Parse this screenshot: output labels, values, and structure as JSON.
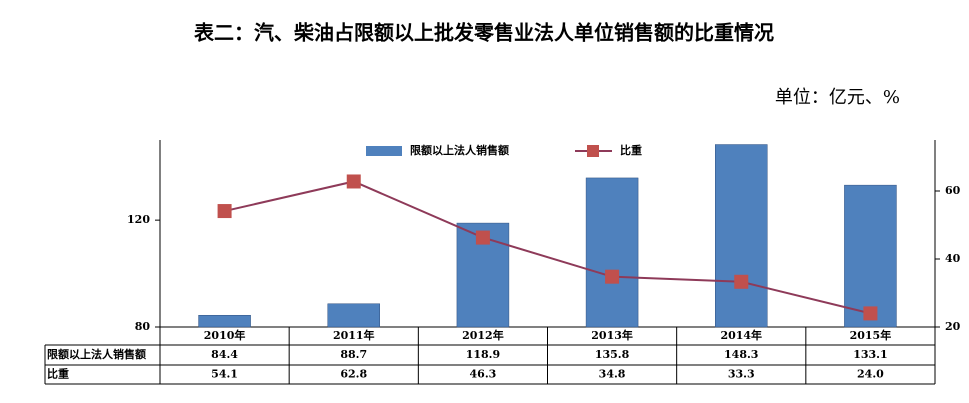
{
  "chart_data": {
    "type": "bar-line",
    "title": "表二：汽、柴油占限额以上批发零售业法人单位销售额的比重情况",
    "unit": "单位：亿元、%",
    "categories": [
      "2010年",
      "2011年",
      "2012年",
      "2013年",
      "2014年",
      "2015年"
    ],
    "series": [
      {
        "name": "限额以上法人销售额",
        "type": "bar",
        "color": "#4f81bd",
        "values": [
          84.4,
          88.7,
          118.9,
          135.8,
          148.3,
          133.1
        ]
      },
      {
        "name": "比重",
        "type": "line",
        "axis": "y2",
        "color": "#8e3a59",
        "marker_color": "#c0504d",
        "values": [
          54.1,
          62.8,
          46.3,
          34.8,
          33.3,
          24.0
        ],
        "value_labels": [
          "54.1",
          "62.8",
          "46.3",
          "34.8",
          "33.3",
          "24.0"
        ]
      }
    ],
    "ylim": [
      80,
      150
    ],
    "yticks": [
      80,
      120
    ],
    "y2lim": [
      20,
      75
    ],
    "y2ticks": [
      20,
      40,
      60
    ],
    "legend": "top"
  }
}
